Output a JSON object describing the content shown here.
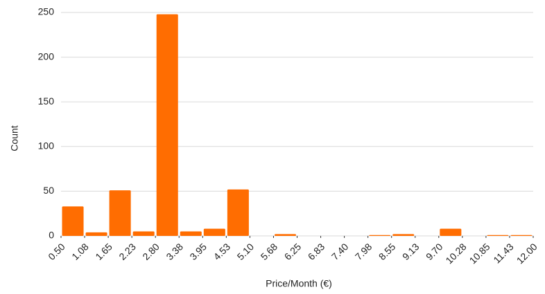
{
  "chart_data": {
    "type": "histogram",
    "x_label": "Price/Month (€)",
    "y_label": "Count",
    "bins": [
      0.5,
      1.075,
      1.65,
      2.225,
      2.8,
      3.375,
      3.95,
      4.525,
      5.1,
      5.675,
      6.25,
      6.825,
      7.4,
      7.975,
      8.55,
      9.125,
      9.7,
      10.275,
      10.85,
      11.425,
      12
    ],
    "counts": [
      33,
      4,
      51,
      5,
      248,
      5,
      8,
      52,
      0,
      2,
      0,
      0,
      0,
      1,
      2,
      0,
      8,
      0,
      1,
      1
    ],
    "color": "#ff6d01",
    "xlim": [
      0.5,
      12
    ],
    "xticks": [
      {
        "value": 0.5,
        "label": "0.50"
      },
      {
        "value": 1.075,
        "label": "1.08"
      },
      {
        "value": 1.65,
        "label": "1.65"
      },
      {
        "value": 2.225,
        "label": "2.23"
      },
      {
        "value": 2.8,
        "label": "2.80"
      },
      {
        "value": 3.375,
        "label": "3.38"
      },
      {
        "value": 3.95,
        "label": "3.95"
      },
      {
        "value": 4.525,
        "label": "4.53"
      },
      {
        "value": 5.1,
        "label": "5.10"
      },
      {
        "value": 5.675,
        "label": "5.68"
      },
      {
        "value": 6.25,
        "label": "6.25"
      },
      {
        "value": 6.825,
        "label": "6.83"
      },
      {
        "value": 7.4,
        "label": "7.40"
      },
      {
        "value": 7.975,
        "label": "7.98"
      },
      {
        "value": 8.55,
        "label": "8.55"
      },
      {
        "value": 9.125,
        "label": "9.13"
      },
      {
        "value": 9.7,
        "label": "9.70"
      },
      {
        "value": 10.275,
        "label": "10.28"
      },
      {
        "value": 10.85,
        "label": "10.85"
      },
      {
        "value": 11.425,
        "label": "11.43"
      },
      {
        "value": 12,
        "label": "12.00"
      }
    ],
    "ylim": [
      0,
      250
    ],
    "yticks": [
      0,
      50,
      100,
      150,
      200,
      250
    ],
    "grid": true
  }
}
